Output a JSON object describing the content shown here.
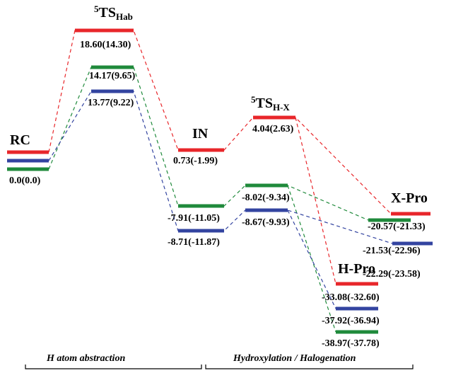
{
  "colors": {
    "red": "#e8262a",
    "green": "#1f8a3b",
    "blue": "#3344a0"
  },
  "states": {
    "rc": {
      "name": "RC",
      "value": "0.0(0.0)"
    },
    "ts_hab": {
      "name_main": "5",
      "name_ts": "TS",
      "name_sub": "Hab",
      "red_value": "18.60(14.30)",
      "green_value": "14.17(9.65)",
      "blue_value": "13.77(9.22)"
    },
    "in": {
      "name": "IN",
      "red_value": "0.73(-1.99)",
      "green_value": "-7.91(-11.05)",
      "blue_value": "-8.71(-11.87)"
    },
    "ts_hx": {
      "name_main": "5",
      "name_ts": "TS",
      "name_sub": "H-X",
      "red_value": "4.04(2.63)",
      "green_value": "-8.02(-9.34)",
      "blue_value": "-8.67(-9.93)"
    },
    "x_pro": {
      "name": "X-Pro",
      "red_value": "-20.57(-21.33)",
      "green_value": "-21.53(-22.96)",
      "blue_value": "-22.29(-23.58)"
    },
    "h_pro": {
      "name": "H-Pro",
      "red_value": "-33.08(-32.60)",
      "blue_value": "-37.92(-36.94)",
      "green_value": "-38.97(-37.78)"
    }
  },
  "sections": {
    "left": "H atom abstraction",
    "right": "Hydroxylation / Halogenation"
  }
}
